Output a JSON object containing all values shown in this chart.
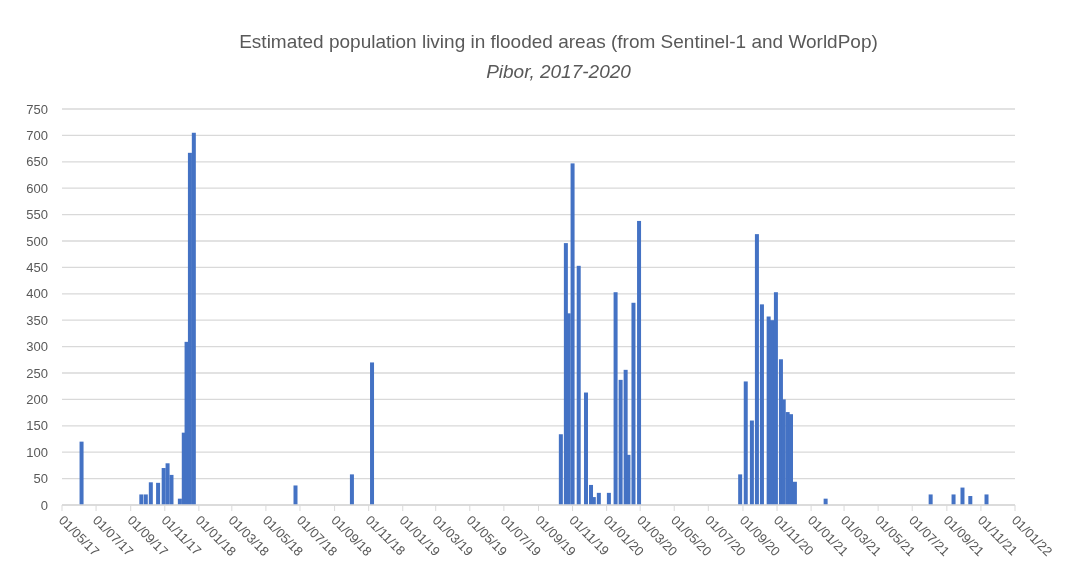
{
  "chart_data": {
    "type": "bar",
    "title": "Estimated population living in flooded areas (from Sentinel-1 and WorldPop)",
    "subtitle": "Pibor, 2017-2020",
    "x": [
      "2017-06-05",
      "2017-09-20",
      "2017-09-28",
      "2017-10-07",
      "2017-10-20",
      "2017-10-30",
      "2017-11-06",
      "2017-11-13",
      "2017-11-28",
      "2017-12-05",
      "2017-12-10",
      "2017-12-16",
      "2017-12-23",
      "2018-06-23",
      "2018-10-02",
      "2018-11-07",
      "2019-10-11",
      "2019-10-20",
      "2019-10-25",
      "2019-11-01",
      "2019-11-12",
      "2019-11-25",
      "2019-12-04",
      "2019-12-09",
      "2019-12-18",
      "2020-01-05",
      "2020-01-17",
      "2020-01-26",
      "2020-02-04",
      "2020-02-09",
      "2020-02-18",
      "2020-02-28",
      "2020-08-27",
      "2020-09-06",
      "2020-09-17",
      "2020-09-26",
      "2020-10-05",
      "2020-10-17",
      "2020-10-23",
      "2020-10-30",
      "2020-11-08",
      "2020-11-13",
      "2020-11-20",
      "2020-11-26",
      "2020-12-03",
      "2021-01-27",
      "2021-08-03",
      "2021-09-13",
      "2021-09-29",
      "2021-10-13",
      "2021-11-11"
    ],
    "values": [
      120,
      20,
      20,
      43,
      42,
      70,
      79,
      57,
      12,
      137,
      309,
      667,
      705,
      37,
      58,
      270,
      134,
      496,
      363,
      647,
      453,
      213,
      38,
      15,
      23,
      23,
      403,
      237,
      256,
      95,
      383,
      538,
      58,
      234,
      160,
      513,
      380,
      357,
      350,
      403,
      276,
      200,
      176,
      172,
      44,
      12,
      20,
      20,
      33,
      17,
      20
    ],
    "color": "#4472c4",
    "xlim": [
      "2017-05-01",
      "2022-01-01"
    ],
    "xticks": [
      {
        "value": "2017-05-01",
        "label": "01/05/17"
      },
      {
        "value": "2017-07-01",
        "label": "01/07/17"
      },
      {
        "value": "2017-09-01",
        "label": "01/09/17"
      },
      {
        "value": "2017-11-01",
        "label": "01/11/17"
      },
      {
        "value": "2018-01-01",
        "label": "01/01/18"
      },
      {
        "value": "2018-03-01",
        "label": "01/03/18"
      },
      {
        "value": "2018-05-01",
        "label": "01/05/18"
      },
      {
        "value": "2018-07-01",
        "label": "01/07/18"
      },
      {
        "value": "2018-09-01",
        "label": "01/09/18"
      },
      {
        "value": "2018-11-01",
        "label": "01/11/18"
      },
      {
        "value": "2019-01-01",
        "label": "01/01/19"
      },
      {
        "value": "2019-03-01",
        "label": "01/03/19"
      },
      {
        "value": "2019-05-01",
        "label": "01/05/19"
      },
      {
        "value": "2019-07-01",
        "label": "01/07/19"
      },
      {
        "value": "2019-09-01",
        "label": "01/09/19"
      },
      {
        "value": "2019-11-01",
        "label": "01/11/19"
      },
      {
        "value": "2020-01-01",
        "label": "01/01/20"
      },
      {
        "value": "2020-03-01",
        "label": "01/03/20"
      },
      {
        "value": "2020-05-01",
        "label": "01/05/20"
      },
      {
        "value": "2020-07-01",
        "label": "01/07/20"
      },
      {
        "value": "2020-09-01",
        "label": "01/09/20"
      },
      {
        "value": "2020-11-01",
        "label": "01/11/20"
      },
      {
        "value": "2021-01-01",
        "label": "01/01/21"
      },
      {
        "value": "2021-03-01",
        "label": "01/03/21"
      },
      {
        "value": "2021-05-01",
        "label": "01/05/21"
      },
      {
        "value": "2021-07-01",
        "label": "01/07/21"
      },
      {
        "value": "2021-09-01",
        "label": "01/09/21"
      },
      {
        "value": "2021-11-01",
        "label": "01/11/21"
      },
      {
        "value": "2022-01-01",
        "label": "01/01/22"
      }
    ],
    "ylim": [
      0,
      750
    ],
    "yticks": [
      0,
      50,
      100,
      150,
      200,
      250,
      300,
      350,
      400,
      450,
      500,
      550,
      600,
      650,
      700,
      750
    ],
    "grid": "y"
  }
}
